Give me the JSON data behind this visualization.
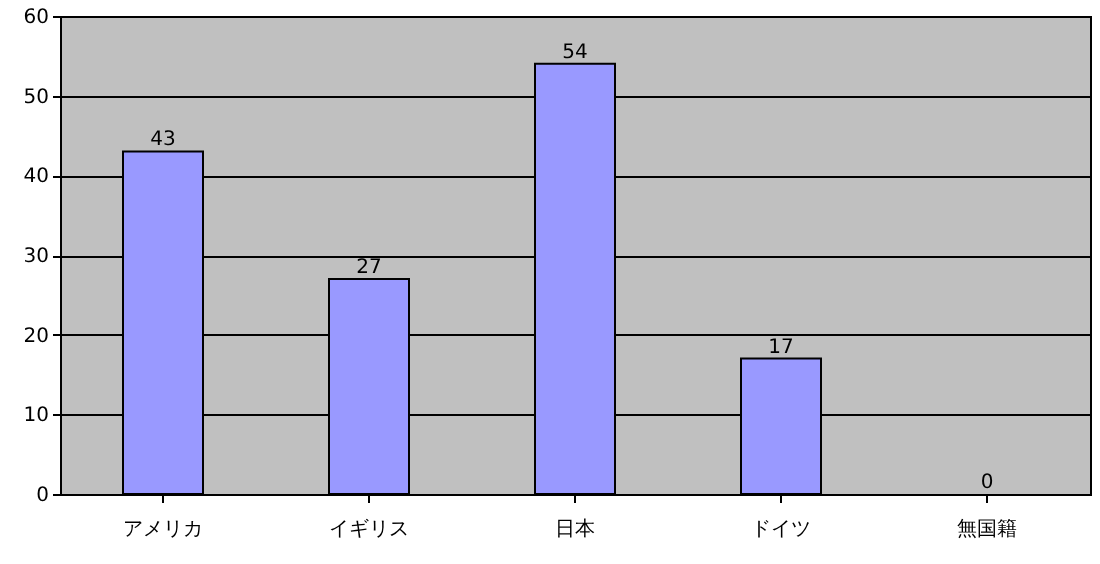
{
  "chart_data": {
    "type": "bar",
    "categories": [
      "アメリカ",
      "イギリス",
      "日本",
      "ドイツ",
      "無国籍"
    ],
    "values": [
      43,
      27,
      54,
      17,
      0
    ],
    "color": "#9999ff",
    "ylim": [
      0,
      60
    ],
    "yticks": [
      0,
      10,
      20,
      30,
      40,
      50,
      60
    ],
    "grid": "y",
    "data_labels": true
  }
}
